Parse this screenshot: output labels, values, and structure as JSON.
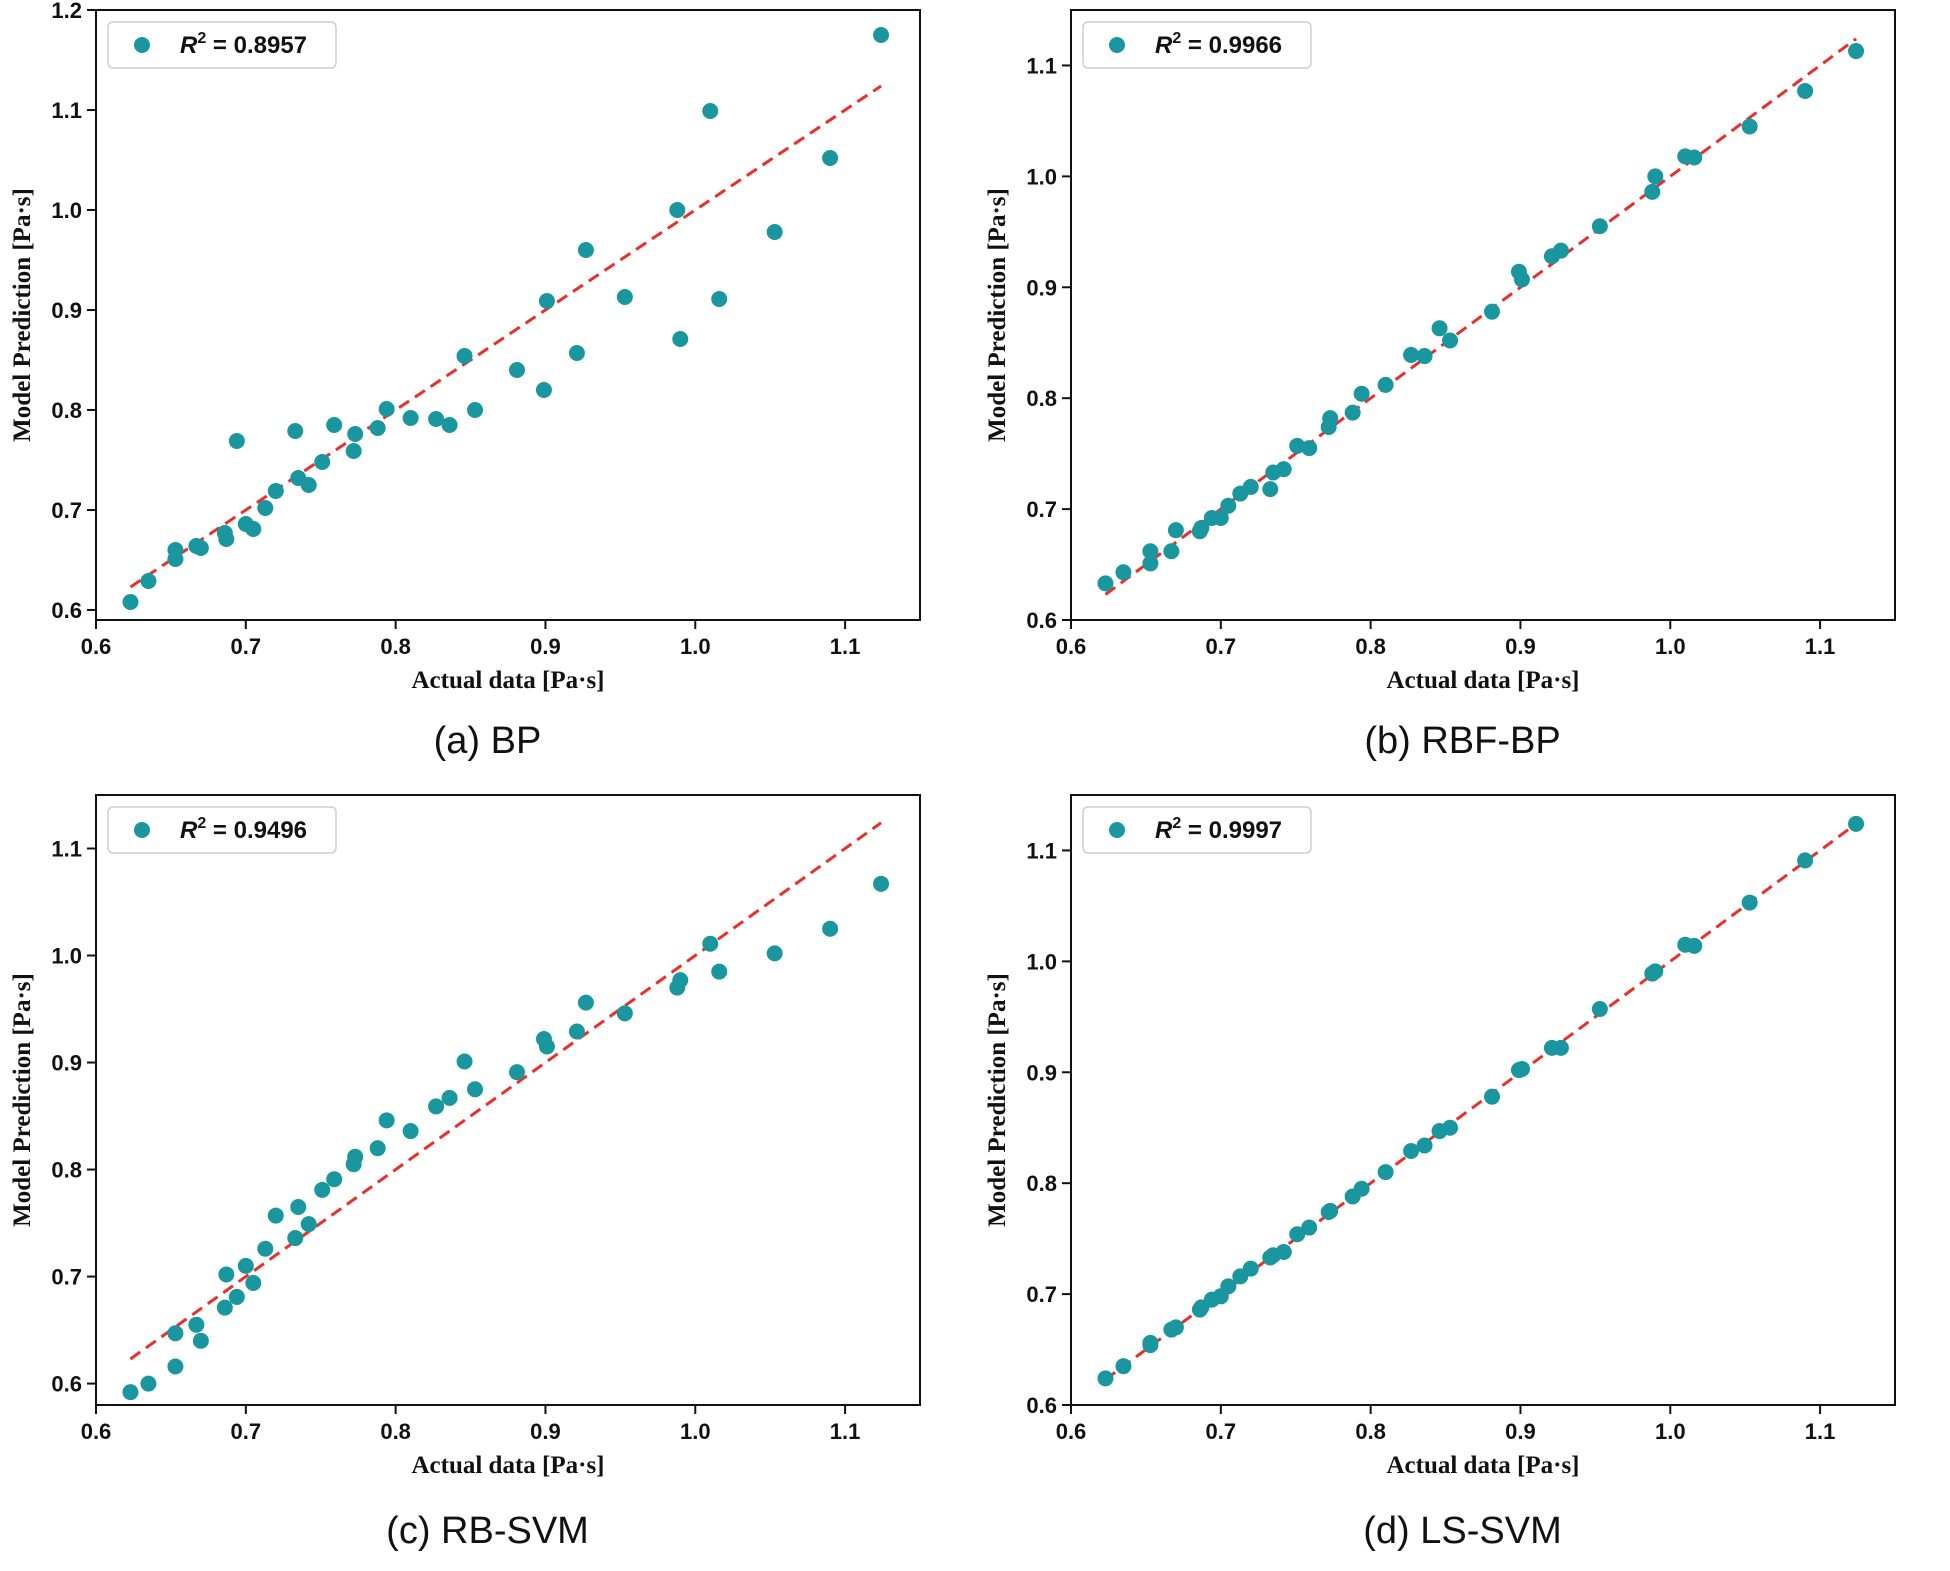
{
  "figure": {
    "panels": [
      {
        "id": "a",
        "caption": "(a) BP",
        "legend": {
          "r_symbol": "R",
          "r_exp": "2",
          "r_value": " = 0.8957"
        },
        "chart_data": {
          "type": "scatter",
          "xlabel": "Actual data [Pa·s]",
          "ylabel": "Model Prediction [Pa·s]",
          "xlim": [
            0.6,
            1.15
          ],
          "ylim": [
            0.59,
            1.2
          ],
          "xticks": [
            "0.6",
            "0.7",
            "0.8",
            "0.9",
            "1.0",
            "1.1"
          ],
          "yticks": [
            "0.6",
            "0.7",
            "0.8",
            "0.9",
            "1.0",
            "1.1",
            "1.2"
          ],
          "fit_line": [
            [
              0.623,
              0.623
            ],
            [
              1.124,
              1.124
            ]
          ],
          "x": [
            0.623,
            0.635,
            0.653,
            0.653,
            0.667,
            0.67,
            0.686,
            0.687,
            0.694,
            0.7,
            0.705,
            0.713,
            0.72,
            0.733,
            0.735,
            0.742,
            0.751,
            0.759,
            0.772,
            0.773,
            0.788,
            0.794,
            0.81,
            0.827,
            0.836,
            0.846,
            0.853,
            0.881,
            0.899,
            0.901,
            0.921,
            0.927,
            0.953,
            0.988,
            0.99,
            1.01,
            1.016,
            1.053,
            1.09,
            1.124
          ],
          "y": [
            0.608,
            0.629,
            0.66,
            0.651,
            0.664,
            0.662,
            0.677,
            0.671,
            0.769,
            0.686,
            0.681,
            0.702,
            0.719,
            0.779,
            0.732,
            0.725,
            0.748,
            0.785,
            0.759,
            0.776,
            0.782,
            0.801,
            0.792,
            0.791,
            0.785,
            0.854,
            0.8,
            0.84,
            0.82,
            0.909,
            0.857,
            0.96,
            0.913,
            1.0,
            0.871,
            1.099,
            0.911,
            0.978,
            1.052,
            1.175
          ]
        }
      },
      {
        "id": "b",
        "caption": "(b) RBF-BP",
        "legend": {
          "r_symbol": "R",
          "r_exp": "2",
          "r_value": " = 0.9966"
        },
        "chart_data": {
          "type": "scatter",
          "xlabel": "Actual data [Pa·s]",
          "ylabel": "Model Prediction [Pa·s]",
          "xlim": [
            0.6,
            1.15
          ],
          "ylim": [
            0.6,
            1.15
          ],
          "xticks": [
            "0.6",
            "0.7",
            "0.8",
            "0.9",
            "1.0",
            "1.1"
          ],
          "yticks": [
            "0.6",
            "0.7",
            "0.8",
            "0.9",
            "1.0",
            "1.1"
          ],
          "fit_line": [
            [
              0.623,
              0.623
            ],
            [
              1.124,
              1.124
            ]
          ],
          "x": [
            0.623,
            0.635,
            0.653,
            0.653,
            0.667,
            0.67,
            0.686,
            0.687,
            0.694,
            0.7,
            0.705,
            0.713,
            0.72,
            0.733,
            0.735,
            0.742,
            0.751,
            0.759,
            0.772,
            0.773,
            0.788,
            0.794,
            0.81,
            0.827,
            0.836,
            0.846,
            0.853,
            0.881,
            0.899,
            0.901,
            0.921,
            0.927,
            0.953,
            0.988,
            0.99,
            1.01,
            1.016,
            1.053,
            1.09,
            1.124
          ],
          "y": [
            0.633,
            0.643,
            0.651,
            0.662,
            0.662,
            0.681,
            0.68,
            0.683,
            0.692,
            0.692,
            0.703,
            0.714,
            0.72,
            0.718,
            0.733,
            0.736,
            0.757,
            0.755,
            0.774,
            0.782,
            0.787,
            0.804,
            0.812,
            0.839,
            0.838,
            0.863,
            0.852,
            0.878,
            0.914,
            0.907,
            0.928,
            0.933,
            0.955,
            0.986,
            1.0,
            1.018,
            1.017,
            1.045,
            1.077,
            1.113
          ]
        }
      },
      {
        "id": "c",
        "caption": "(c) RB-SVM",
        "legend": {
          "r_symbol": "R",
          "r_exp": "2",
          "r_value": " = 0.9496"
        },
        "chart_data": {
          "type": "scatter",
          "xlabel": "Actual data [Pa·s]",
          "ylabel": "Model Prediction [Pa·s]",
          "xlim": [
            0.6,
            1.15
          ],
          "ylim": [
            0.58,
            1.15
          ],
          "xticks": [
            "0.6",
            "0.7",
            "0.8",
            "0.9",
            "1.0",
            "1.1"
          ],
          "yticks": [
            "0.6",
            "0.7",
            "0.8",
            "0.9",
            "1.0",
            "1.1"
          ],
          "fit_line": [
            [
              0.623,
              0.623
            ],
            [
              1.124,
              1.124
            ]
          ],
          "x": [
            0.623,
            0.635,
            0.653,
            0.653,
            0.667,
            0.67,
            0.686,
            0.687,
            0.694,
            0.7,
            0.705,
            0.713,
            0.72,
            0.733,
            0.735,
            0.742,
            0.751,
            0.759,
            0.772,
            0.773,
            0.788,
            0.794,
            0.81,
            0.827,
            0.836,
            0.846,
            0.853,
            0.881,
            0.899,
            0.901,
            0.921,
            0.927,
            0.953,
            0.988,
            0.99,
            1.01,
            1.016,
            1.053,
            1.09,
            1.124
          ],
          "y": [
            0.592,
            0.6,
            0.616,
            0.647,
            0.655,
            0.64,
            0.671,
            0.702,
            0.681,
            0.71,
            0.694,
            0.726,
            0.757,
            0.736,
            0.765,
            0.749,
            0.781,
            0.791,
            0.805,
            0.812,
            0.82,
            0.846,
            0.836,
            0.859,
            0.867,
            0.901,
            0.875,
            0.891,
            0.922,
            0.915,
            0.929,
            0.956,
            0.946,
            0.97,
            0.977,
            1.011,
            0.985,
            1.002,
            1.025,
            1.067
          ]
        }
      },
      {
        "id": "d",
        "caption": "(d) LS-SVM",
        "legend": {
          "r_symbol": "R",
          "r_exp": "2",
          "r_value": " = 0.9997"
        },
        "chart_data": {
          "type": "scatter",
          "xlabel": "Actual data [Pa·s]",
          "ylabel": "Model Prediction [Pa·s]",
          "xlim": [
            0.6,
            1.15
          ],
          "ylim": [
            0.6,
            1.15
          ],
          "xticks": [
            "0.6",
            "0.7",
            "0.8",
            "0.9",
            "1.0",
            "1.1"
          ],
          "yticks": [
            "0.6",
            "0.7",
            "0.8",
            "0.9",
            "1.0",
            "1.1"
          ],
          "fit_line": [
            [
              0.623,
              0.623
            ],
            [
              1.124,
              1.124
            ]
          ],
          "x": [
            0.623,
            0.635,
            0.653,
            0.653,
            0.667,
            0.67,
            0.686,
            0.687,
            0.694,
            0.7,
            0.705,
            0.713,
            0.72,
            0.733,
            0.735,
            0.742,
            0.751,
            0.759,
            0.772,
            0.773,
            0.788,
            0.794,
            0.81,
            0.827,
            0.836,
            0.846,
            0.853,
            0.881,
            0.899,
            0.901,
            0.921,
            0.927,
            0.953,
            0.988,
            0.99,
            1.01,
            1.016,
            1.053,
            1.09,
            1.124
          ],
          "y": [
            0.624,
            0.635,
            0.654,
            0.656,
            0.668,
            0.67,
            0.686,
            0.688,
            0.695,
            0.698,
            0.707,
            0.716,
            0.723,
            0.733,
            0.735,
            0.738,
            0.754,
            0.76,
            0.774,
            0.775,
            0.788,
            0.795,
            0.81,
            0.829,
            0.834,
            0.847,
            0.85,
            0.878,
            0.902,
            0.903,
            0.922,
            0.922,
            0.957,
            0.989,
            0.991,
            1.015,
            1.014,
            1.053,
            1.091,
            1.124
          ]
        }
      }
    ],
    "colors": {
      "points": "#1a969f",
      "fit_line": "#e8302b",
      "axes": "#111111"
    }
  }
}
